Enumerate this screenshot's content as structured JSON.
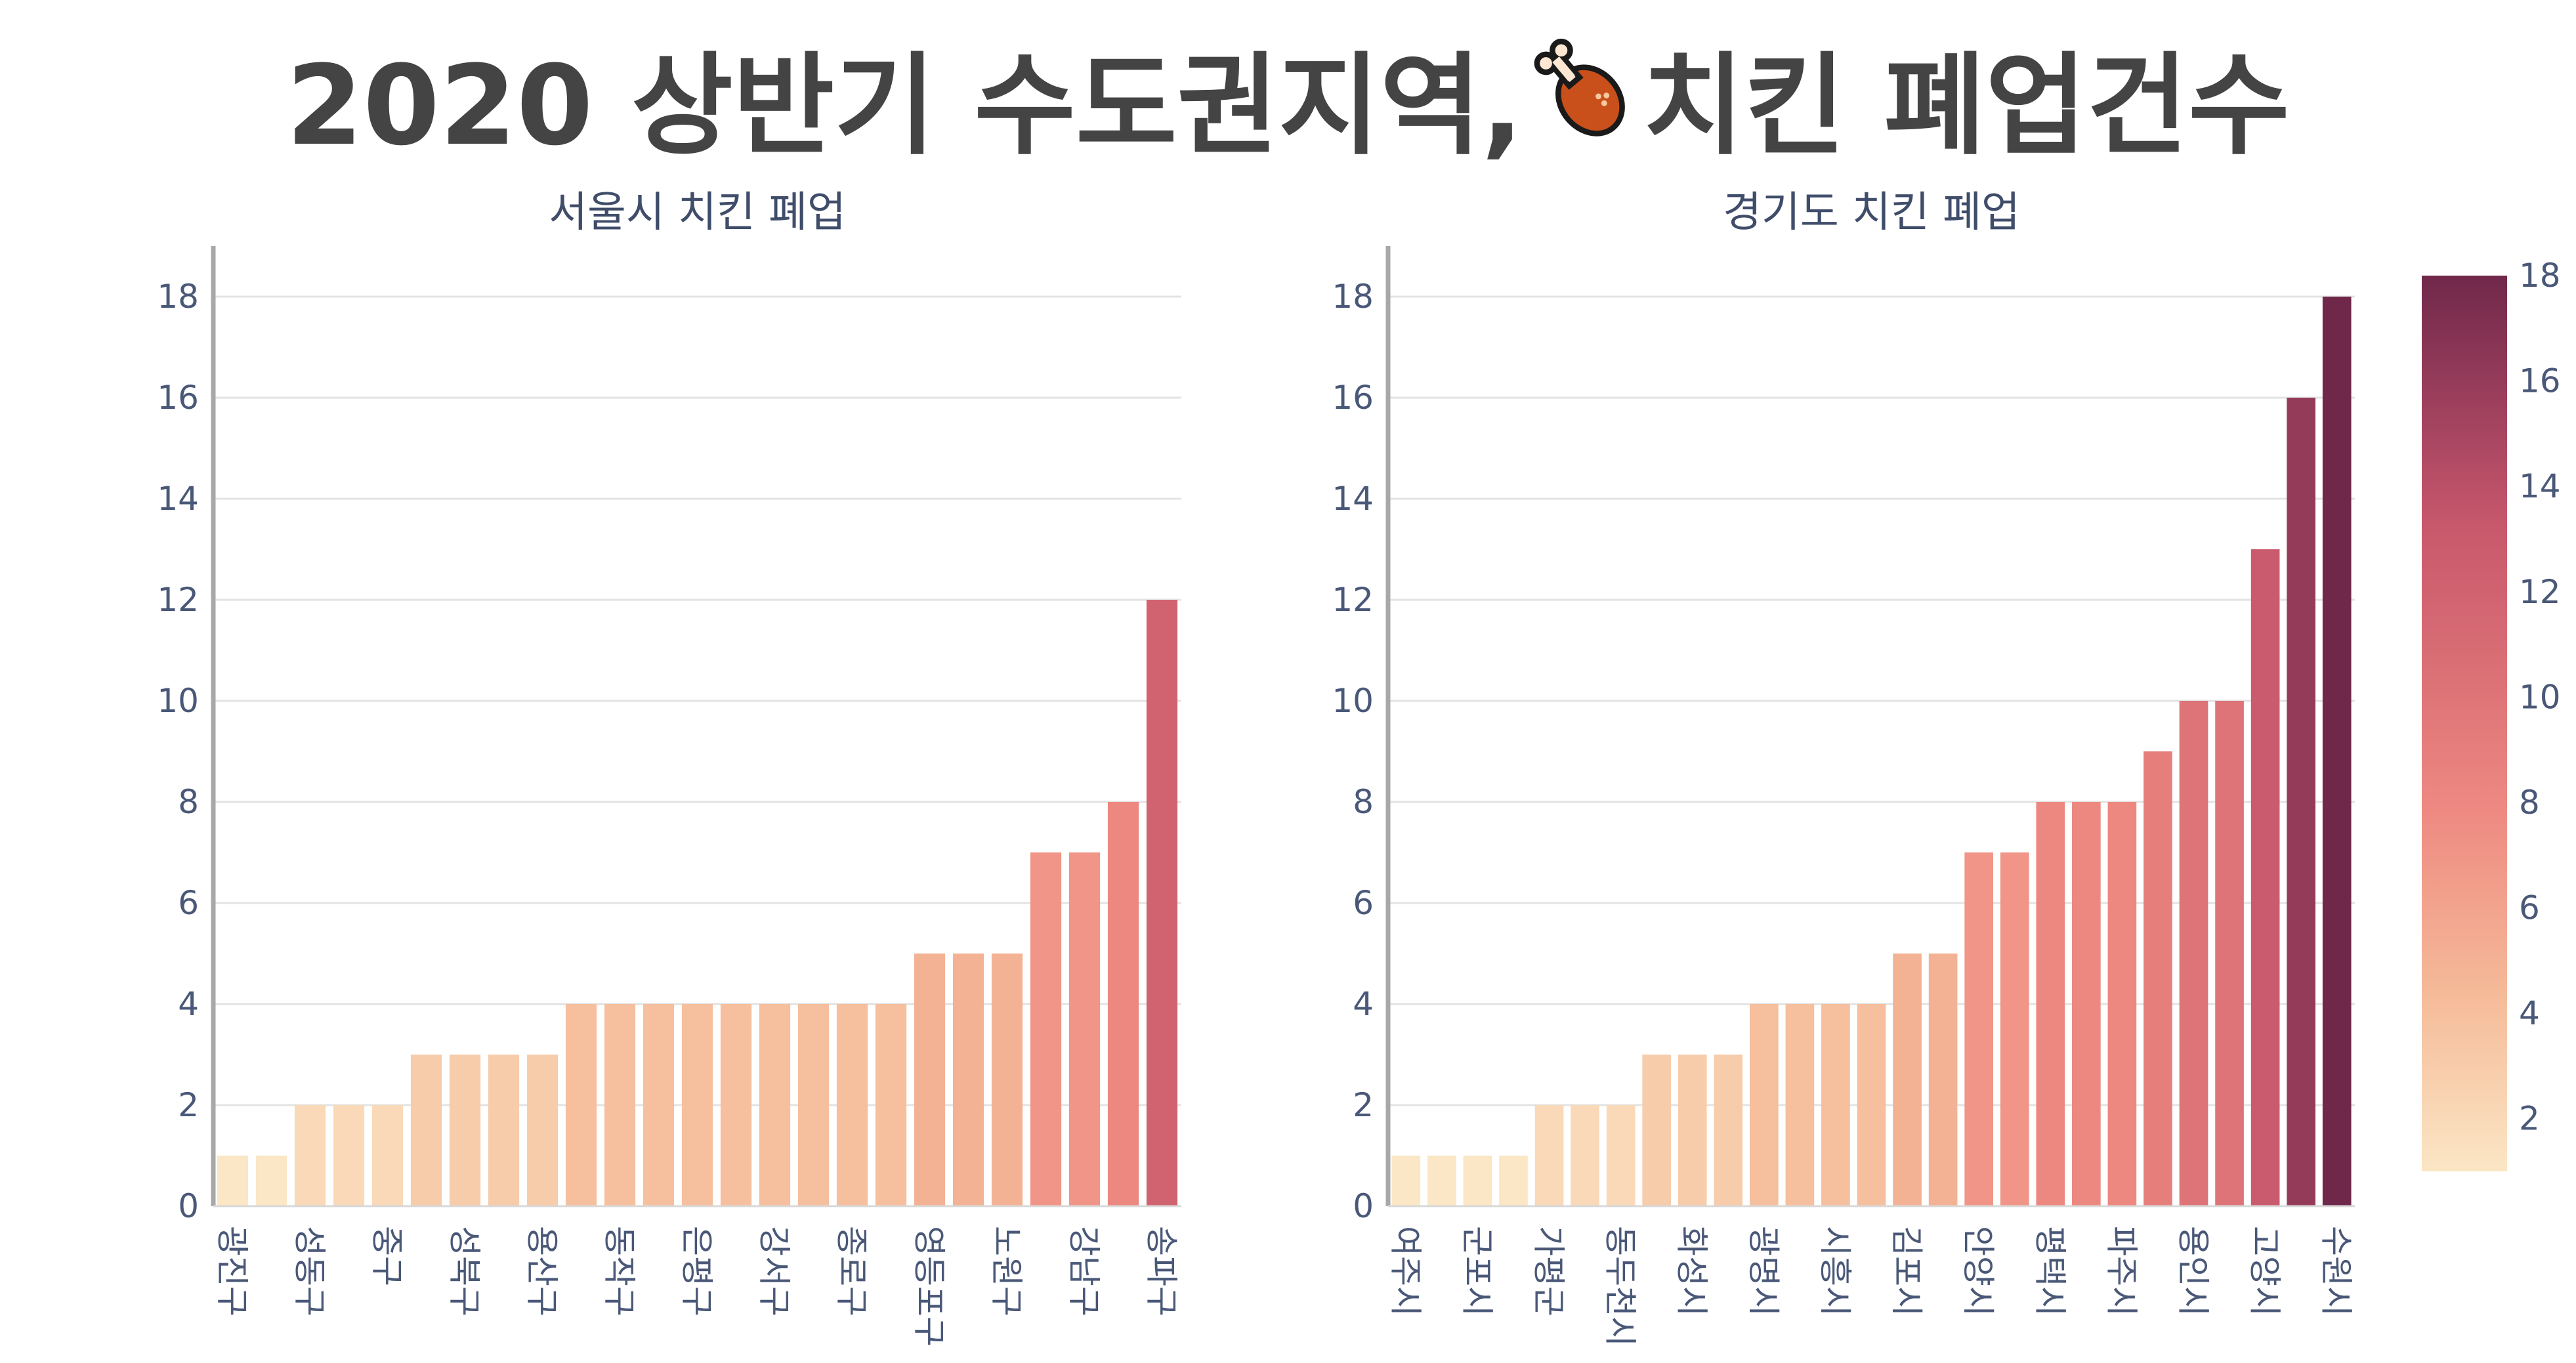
{
  "title": {
    "before": "2020 상반기 수도권지역,",
    "after": "치킨 폐업건수",
    "icon": "chicken-drumstick-icon"
  },
  "colorbar": {
    "ticks": [
      2,
      4,
      6,
      8,
      10,
      12,
      14,
      16,
      18
    ],
    "range": [
      1,
      18
    ],
    "colors": [
      "#fbe6c5",
      "#f5ba98",
      "#ee8a82",
      "#dc7176",
      "#c8586c",
      "#9c3f5d",
      "#70284a"
    ]
  },
  "chart_data": [
    {
      "type": "bar",
      "title": "서울시 치킨 폐업",
      "categories": [
        "광진구",
        "",
        "성동구",
        "",
        "중구",
        "",
        "성북구",
        "",
        "용산구",
        "",
        "동작구",
        "",
        "은평구",
        "",
        "강서구",
        "",
        "종로구",
        "",
        "영등포구",
        "",
        "노원구",
        "",
        "강남구",
        "",
        "송파구"
      ],
      "values": [
        1,
        1,
        2,
        2,
        2,
        3,
        3,
        3,
        3,
        4,
        4,
        4,
        4,
        4,
        4,
        4,
        4,
        4,
        5,
        5,
        5,
        7,
        7,
        8,
        12
      ],
      "ylim": [
        0,
        19
      ],
      "yticks": [
        0,
        2,
        4,
        6,
        8,
        10,
        12,
        14,
        16,
        18
      ],
      "xlabel": "",
      "ylabel": "",
      "grid": true
    },
    {
      "type": "bar",
      "title": "경기도 치킨 폐업",
      "categories": [
        "여주시",
        "",
        "군포시",
        "",
        "가평군",
        "",
        "동두천시",
        "",
        "화성시",
        "",
        "광명시",
        "",
        "시흥시",
        "",
        "김포시",
        "",
        "안양시",
        "",
        "평택시",
        "",
        "파주시",
        "",
        "용인시",
        "",
        "고양시",
        "",
        "수원시"
      ],
      "values": [
        1,
        1,
        1,
        1,
        2,
        2,
        2,
        3,
        3,
        3,
        4,
        4,
        4,
        4,
        5,
        5,
        7,
        7,
        8,
        8,
        8,
        9,
        10,
        10,
        13,
        16,
        18
      ],
      "ylim": [
        0,
        19
      ],
      "yticks": [
        0,
        2,
        4,
        6,
        8,
        10,
        12,
        14,
        16,
        18
      ],
      "xlabel": "",
      "ylabel": "",
      "grid": true
    }
  ]
}
